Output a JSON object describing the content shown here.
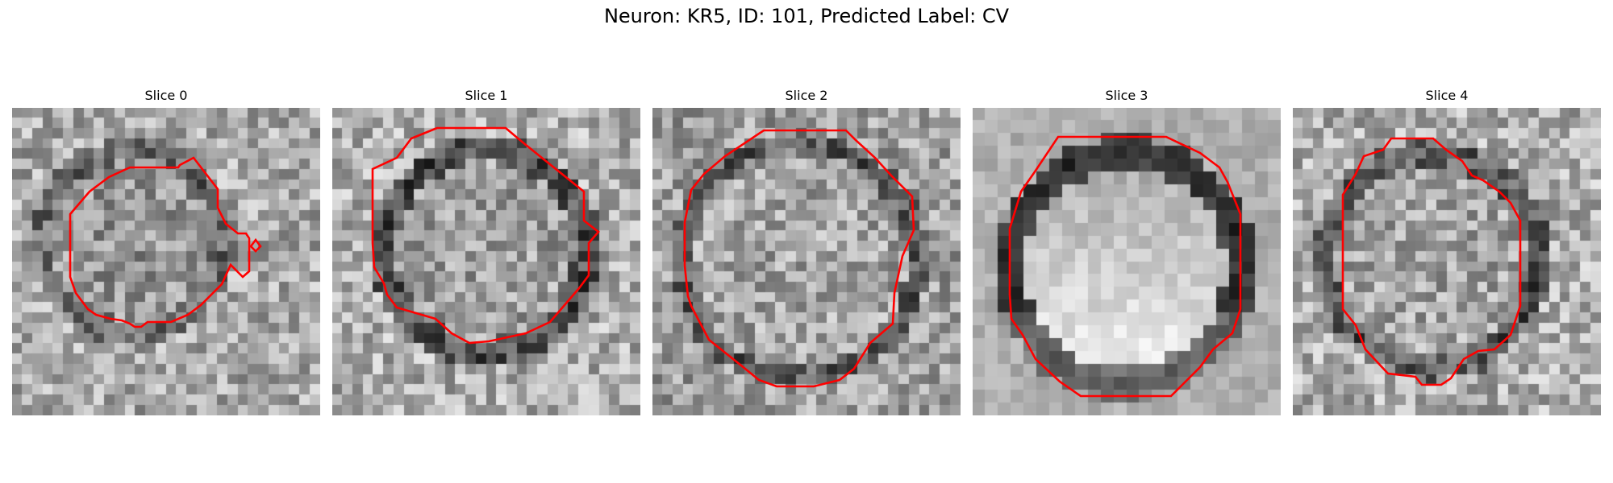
{
  "figure": {
    "title": "Neuron: KR5, ID: 101, Predicted Label: CV"
  },
  "colors": {
    "contour": "#ff0000",
    "colormap": "grayscale"
  },
  "panels": [
    {
      "title": "Slice 0"
    },
    {
      "title": "Slice 1"
    },
    {
      "title": "Slice 2"
    },
    {
      "title": "Slice 3"
    },
    {
      "title": "Slice 4"
    }
  ]
}
